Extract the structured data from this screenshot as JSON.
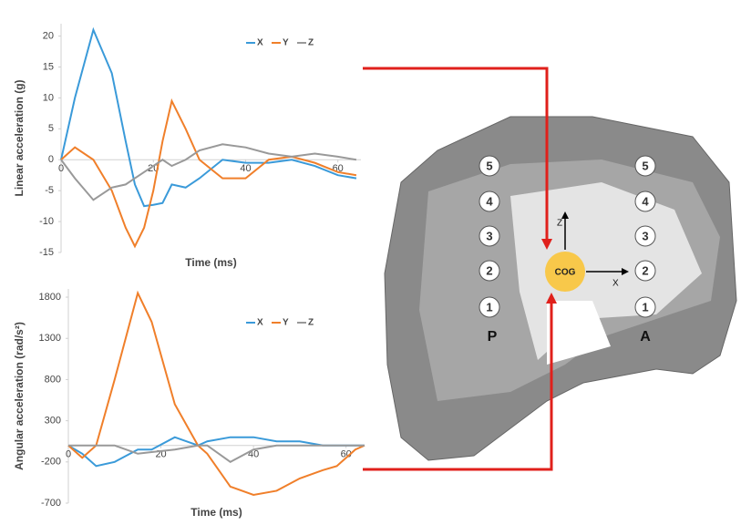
{
  "chart_data": [
    {
      "type": "line",
      "y_label": "Linear acceleration  (g)",
      "x_label": "Time (ms)",
      "x": [
        0,
        3,
        7,
        11,
        14,
        16,
        18,
        20,
        22,
        24,
        27,
        30,
        35,
        40,
        45,
        50,
        55,
        60,
        64
      ],
      "series": [
        {
          "name": "X",
          "color": "#3a9ad9",
          "values": [
            0,
            10,
            21,
            14,
            3,
            -4,
            -7.5,
            -7.3,
            -7,
            -4,
            -4.5,
            -3,
            0,
            -0.5,
            -0.5,
            0,
            -1,
            -2.5,
            -3
          ]
        },
        {
          "name": "Y",
          "color": "#f07f2a",
          "values": [
            0,
            2,
            0,
            -5,
            -11,
            -14,
            -11,
            -5,
            3,
            9.5,
            5,
            0,
            -3,
            -3,
            0,
            0.5,
            -0.5,
            -2,
            -2.5
          ]
        },
        {
          "name": "Z",
          "color": "#999999",
          "values": [
            0,
            -3,
            -6.5,
            -4.5,
            -4,
            -3,
            -2,
            -1,
            0,
            -1,
            0,
            1.5,
            2.5,
            2,
            1,
            0.5,
            1,
            0.5,
            0
          ]
        }
      ],
      "xlim": [
        0,
        65
      ],
      "xticks": [
        0,
        20,
        40,
        60
      ],
      "ylim": [
        -15,
        22
      ],
      "yticks": [
        -15,
        -10,
        -5,
        0,
        5,
        10,
        15,
        20
      ]
    },
    {
      "type": "line",
      "y_label": "Angular acceleration (rad/s²)",
      "x_label": "Time (ms)",
      "x": [
        0,
        3,
        6,
        10,
        15,
        18,
        23,
        28,
        30,
        35,
        40,
        45,
        50,
        55,
        58,
        62,
        64
      ],
      "series": [
        {
          "name": "X",
          "color": "#3a9ad9",
          "values": [
            0,
            -100,
            -250,
            -200,
            -50,
            -50,
            100,
            0,
            50,
            100,
            100,
            50,
            50,
            0,
            0,
            0,
            0
          ]
        },
        {
          "name": "Y",
          "color": "#f07f2a",
          "values": [
            0,
            -150,
            0,
            800,
            1850,
            1500,
            500,
            0,
            -100,
            -500,
            -600,
            -550,
            -400,
            -300,
            -250,
            -50,
            0
          ]
        },
        {
          "name": "Z",
          "color": "#999999",
          "values": [
            0,
            0,
            0,
            0,
            -100,
            -80,
            -50,
            0,
            0,
            -200,
            -50,
            0,
            0,
            0,
            0,
            0,
            0
          ]
        }
      ],
      "xlim": [
        0,
        64
      ],
      "xticks": [
        0,
        20,
        40,
        60
      ],
      "ylim": [
        -700,
        1900
      ],
      "yticks": [
        -700,
        -200,
        300,
        800,
        1300,
        1800
      ]
    }
  ],
  "diagram": {
    "posterior_points": [
      "1",
      "2",
      "3",
      "4",
      "5"
    ],
    "anterior_points": [
      "1",
      "2",
      "3",
      "4",
      "5"
    ],
    "posterior": "P",
    "anterior": "A",
    "center": "COG",
    "x_axis": "X",
    "z_axis": "Z"
  }
}
